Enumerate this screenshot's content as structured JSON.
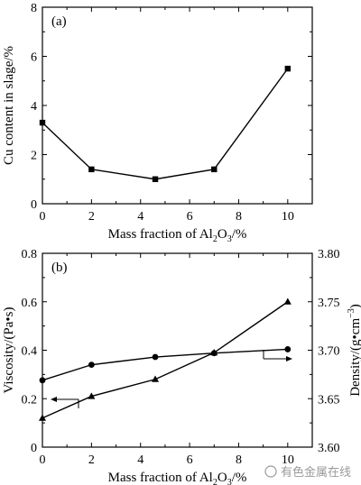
{
  "chart_data": [
    {
      "type": "line",
      "panel_label": "(a)",
      "x": [
        0,
        2,
        4.6,
        7,
        10
      ],
      "series": [
        {
          "values": [
            3.3,
            1.4,
            1.0,
            1.4,
            5.5
          ],
          "marker": "square"
        }
      ],
      "xlabel": {
        "prefix": "Mass fraction of Al",
        "sub1": "2",
        "mid": "O",
        "sub2": "3",
        "suffix": "/%"
      },
      "ylabel": "Cu content in slage/%",
      "xlim": [
        0,
        11
      ],
      "ylim": [
        0,
        8
      ],
      "xticks": [
        0,
        2,
        4,
        6,
        8,
        10
      ],
      "yticks": [
        0,
        2,
        4,
        6,
        8
      ],
      "grid": false
    },
    {
      "type": "line",
      "panel_label": "(b)",
      "x": [
        0,
        2,
        4.6,
        7,
        10
      ],
      "series": [
        {
          "axis": "left",
          "values": [
            0.12,
            0.21,
            0.28,
            0.39,
            0.6
          ],
          "marker": "triangle"
        },
        {
          "axis": "right",
          "values": [
            3.669,
            3.685,
            3.693,
            3.697,
            3.701
          ],
          "marker": "circle"
        }
      ],
      "xlabel": {
        "prefix": "Mass fraction of Al",
        "sub1": "2",
        "mid": "O",
        "sub2": "3",
        "suffix": "/%"
      },
      "ylabel_left": "Viscosity/(Pa•s)",
      "ylabel_right": {
        "prefix": "Density/(g•cm",
        "sup": "−3",
        "suffix": ")"
      },
      "xlim": [
        0,
        11
      ],
      "ylim_left": [
        0,
        0.8
      ],
      "ylim_right": [
        3.6,
        3.8
      ],
      "xticks": [
        0,
        2,
        4,
        6,
        8,
        10
      ],
      "yticks_left": [
        0,
        0.2,
        0.4,
        0.6,
        0.8
      ],
      "yticks_right": [
        3.6,
        3.65,
        3.7,
        3.75,
        3.8
      ],
      "ytick_labels_left": [
        "0",
        "0.2",
        "0.4",
        "0.6",
        "0.8"
      ],
      "ytick_labels_right": [
        "3.60",
        "3.65",
        "3.70",
        "3.75",
        "3.80"
      ],
      "grid": false
    }
  ],
  "watermark": "有色金属在线"
}
